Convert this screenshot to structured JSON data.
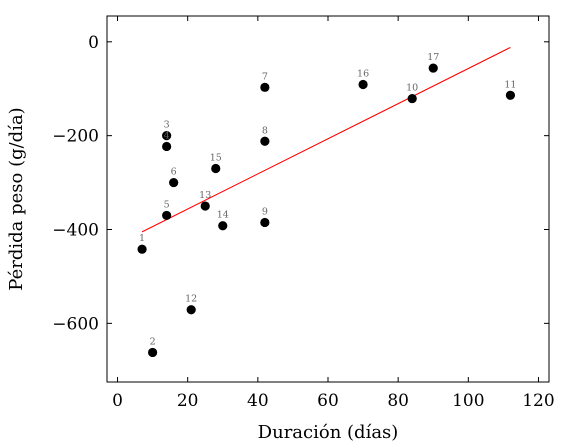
{
  "chart_data": {
    "type": "scatter",
    "xlabel": "Duración (días)",
    "ylabel": "Pérdida peso (g/día)",
    "xlim": [
      -3,
      123
    ],
    "ylim": [
      -725,
      55
    ],
    "xticks": [
      0,
      20,
      40,
      60,
      80,
      100,
      120
    ],
    "yticks": [
      0,
      -200,
      -400,
      -600
    ],
    "xtick_labels": [
      "0",
      "20",
      "40",
      "60",
      "80",
      "100",
      "120"
    ],
    "ytick_labels": [
      "0",
      "−200",
      "−400",
      "−600"
    ],
    "grid": false,
    "point_color": "#000000",
    "label_color": "#666666",
    "points": [
      {
        "label": "1",
        "x": 7,
        "y": -442
      },
      {
        "label": "2",
        "x": 10,
        "y": -662
      },
      {
        "label": "3",
        "x": 14,
        "y": -200
      },
      {
        "label": "4",
        "x": 14,
        "y": -223
      },
      {
        "label": "5",
        "x": 14,
        "y": -370
      },
      {
        "label": "6",
        "x": 16,
        "y": -300
      },
      {
        "label": "7",
        "x": 42,
        "y": -97
      },
      {
        "label": "8",
        "x": 42,
        "y": -212
      },
      {
        "label": "9",
        "x": 42,
        "y": -385
      },
      {
        "label": "10",
        "x": 84,
        "y": -121
      },
      {
        "label": "11",
        "x": 112,
        "y": -114
      },
      {
        "label": "12",
        "x": 21,
        "y": -571
      },
      {
        "label": "13",
        "x": 25,
        "y": -350
      },
      {
        "label": "14",
        "x": 30,
        "y": -392
      },
      {
        "label": "15",
        "x": 28,
        "y": -270
      },
      {
        "label": "16",
        "x": 70,
        "y": -91
      },
      {
        "label": "17",
        "x": 90,
        "y": -56
      }
    ],
    "trend_line": {
      "color": "#ff0000",
      "x": [
        7,
        112
      ],
      "y": [
        -405,
        -12
      ]
    }
  }
}
